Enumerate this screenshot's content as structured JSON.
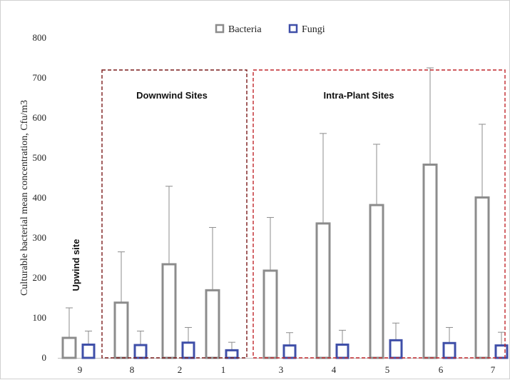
{
  "chart_data": {
    "type": "bar",
    "ylabel": "Culturable bacterial mean concentration, Cfu/m3",
    "ylim": [
      0,
      800
    ],
    "yticks": [
      0,
      100,
      200,
      300,
      400,
      500,
      600,
      700,
      800
    ],
    "categories": [
      "9",
      "8",
      "2",
      "1",
      "3",
      "4",
      "5",
      "6",
      "7"
    ],
    "series": [
      {
        "name": "Bacteria",
        "color": "#8c8c8c",
        "values": [
          50,
          138,
          234,
          169,
          218,
          336,
          382,
          483,
          401
        ],
        "error_upper": [
          125,
          265,
          429,
          326,
          351,
          561,
          534,
          725,
          584
        ]
      },
      {
        "name": "Fungi",
        "color": "#3f4fa8",
        "values": [
          33,
          32,
          38,
          19,
          31,
          33,
          44,
          37,
          31
        ],
        "error_upper": [
          67,
          67,
          76,
          39,
          63,
          69,
          87,
          76,
          64
        ]
      }
    ],
    "legend": {
      "position": "top-center",
      "entries": [
        "Bacteria",
        "Fungi"
      ]
    },
    "annotations": [
      {
        "id": "upwind",
        "text": "Upwind site"
      },
      {
        "id": "downwind",
        "text": "Downwind Sites"
      },
      {
        "id": "intra",
        "text": "Intra-Plant Sites"
      }
    ],
    "grid": false
  }
}
